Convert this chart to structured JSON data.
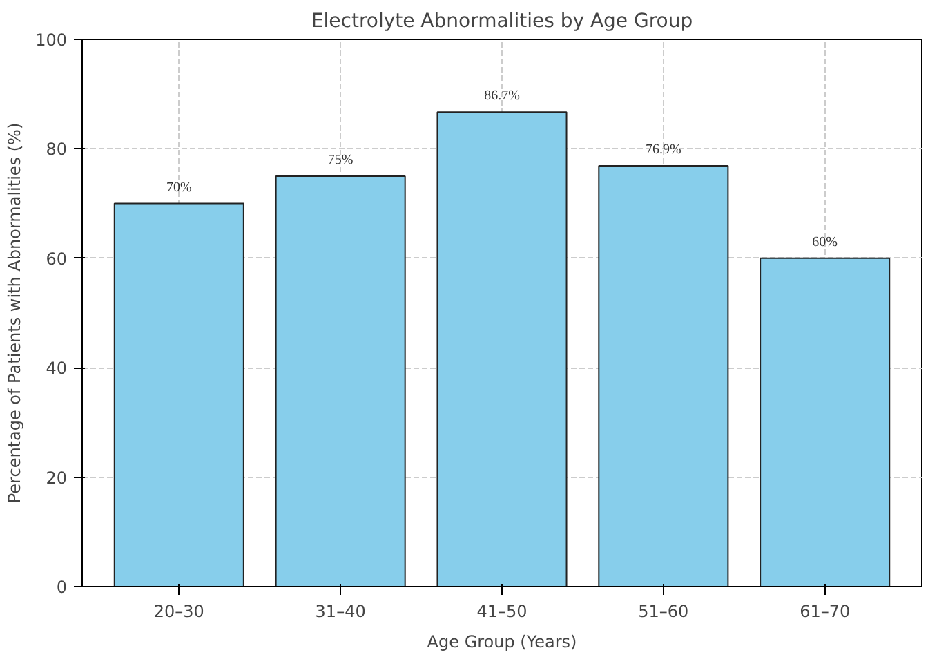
{
  "chart_data": {
    "type": "bar",
    "title": "Electrolyte Abnormalities by Age Group",
    "xlabel": "Age Group (Years)",
    "ylabel": "Percentage of Patients with Abnormalities (%)",
    "categories": [
      "20–30",
      "31–40",
      "41–50",
      "51–60",
      "61–70"
    ],
    "values": [
      70,
      75,
      86.7,
      76.9,
      60
    ],
    "value_labels": [
      "70%",
      "75%",
      "86.7%",
      "76.9%",
      "60%"
    ],
    "color": "#87ceeb",
    "ylim": [
      0,
      100
    ],
    "yticks": [
      0,
      20,
      40,
      60,
      80,
      100
    ],
    "grid": true
  }
}
